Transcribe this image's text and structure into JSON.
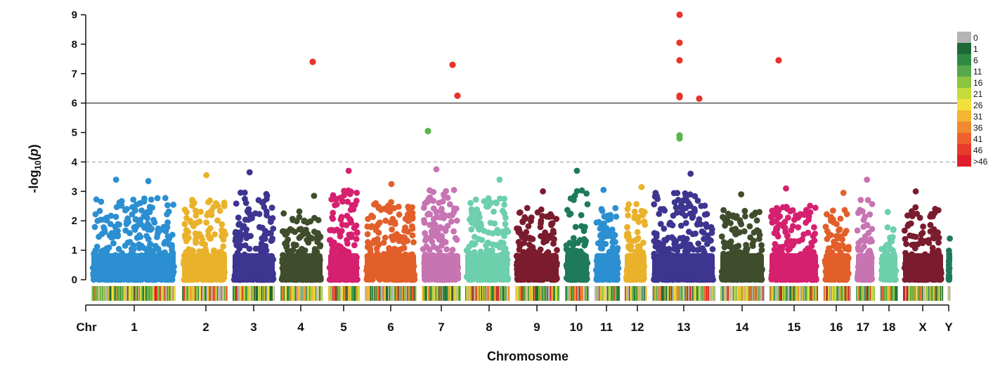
{
  "chart_data": {
    "type": "scatter",
    "subtype": "manhattan",
    "xlabel": "Chromosome",
    "ylabel_main": "-log",
    "ylabel_sub": "10",
    "ylabel_paren_open": "(",
    "ylabel_var": "p",
    "ylabel_paren_close": ")",
    "x_prefix_label": "Chr",
    "ylim": [
      0,
      9
    ],
    "yticks": [
      "0",
      "1",
      "2",
      "3",
      "4",
      "5",
      "6",
      "7",
      "8",
      "9"
    ],
    "genome_wide_threshold": 6,
    "suggestive_threshold": 4,
    "chromosomes": [
      {
        "label": "1",
        "color": "#2b8fd1"
      },
      {
        "label": "2",
        "color": "#eab22b"
      },
      {
        "label": "3",
        "color": "#3d3590"
      },
      {
        "label": "4",
        "color": "#3f4d2c"
      },
      {
        "label": "5",
        "color": "#d5206f"
      },
      {
        "label": "6",
        "color": "#e25f2a"
      },
      {
        "label": "7",
        "color": "#c774b3"
      },
      {
        "label": "8",
        "color": "#6dcfac"
      },
      {
        "label": "9",
        "color": "#7a1c2e"
      },
      {
        "label": "10",
        "color": "#1f7a5a"
      },
      {
        "label": "11",
        "color": "#2b8fd1"
      },
      {
        "label": "12",
        "color": "#eab22b"
      },
      {
        "label": "13",
        "color": "#3d3590"
      },
      {
        "label": "14",
        "color": "#3f4d2c"
      },
      {
        "label": "15",
        "color": "#d5206f"
      },
      {
        "label": "16",
        "color": "#e25f2a"
      },
      {
        "label": "17",
        "color": "#c774b3"
      },
      {
        "label": "18",
        "color": "#6dcfac"
      },
      {
        "label": "X",
        "color": "#7a1c2e"
      },
      {
        "label": "Y",
        "color": "#1f7a5a"
      }
    ],
    "significant_points": [
      {
        "chr": "4",
        "y": 7.4,
        "color": "#e8342b"
      },
      {
        "chr": "7",
        "y": 7.3,
        "color": "#e8342b"
      },
      {
        "chr": "7",
        "y": 6.25,
        "color": "#e8342b"
      },
      {
        "chr": "13",
        "y": 9.0,
        "color": "#e8342b"
      },
      {
        "chr": "13",
        "y": 8.05,
        "color": "#e8342b"
      },
      {
        "chr": "13",
        "y": 7.45,
        "color": "#e8342b"
      },
      {
        "chr": "13",
        "y": 6.25,
        "color": "#e8342b"
      },
      {
        "chr": "13",
        "y": 6.2,
        "color": "#e8342b"
      },
      {
        "chr": "13",
        "y": 6.15,
        "color": "#e8342b"
      },
      {
        "chr": "15",
        "y": 7.45,
        "color": "#e8342b"
      },
      {
        "chr": "7",
        "y": 5.05,
        "color": "#5ab54a"
      },
      {
        "chr": "13",
        "y": 4.9,
        "color": "#5ab54a"
      },
      {
        "chr": "13",
        "y": 4.8,
        "color": "#5ab54a"
      }
    ],
    "peak_points": [
      {
        "chr": "1",
        "y": 3.4
      },
      {
        "chr": "1",
        "y": 3.35
      },
      {
        "chr": "2",
        "y": 3.55
      },
      {
        "chr": "3",
        "y": 3.65
      },
      {
        "chr": "4",
        "y": 2.85
      },
      {
        "chr": "5",
        "y": 3.7
      },
      {
        "chr": "6",
        "y": 3.25
      },
      {
        "chr": "7",
        "y": 3.75
      },
      {
        "chr": "8",
        "y": 3.4
      },
      {
        "chr": "9",
        "y": 3.0
      },
      {
        "chr": "10",
        "y": 3.7
      },
      {
        "chr": "11",
        "y": 3.05
      },
      {
        "chr": "12",
        "y": 3.15
      },
      {
        "chr": "13",
        "y": 3.6
      },
      {
        "chr": "14",
        "y": 2.9
      },
      {
        "chr": "15",
        "y": 3.1
      },
      {
        "chr": "16",
        "y": 2.95
      },
      {
        "chr": "17",
        "y": 3.4
      },
      {
        "chr": "18",
        "y": 2.3
      },
      {
        "chr": "X",
        "y": 3.0
      },
      {
        "chr": "Y",
        "y": 1.4
      }
    ],
    "density_legend": {
      "labels": [
        "0",
        "1",
        "6",
        "11",
        "16",
        "21",
        "26",
        "31",
        "36",
        "41",
        "46",
        ">46"
      ],
      "colors": [
        "#b5b5b5",
        "#1d6a37",
        "#2e8a41",
        "#56a84a",
        "#8cc540",
        "#c6dc3a",
        "#f2e13a",
        "#f4b531",
        "#f08a2e",
        "#ec612c",
        "#e63c2a",
        "#e01e2b"
      ]
    }
  }
}
